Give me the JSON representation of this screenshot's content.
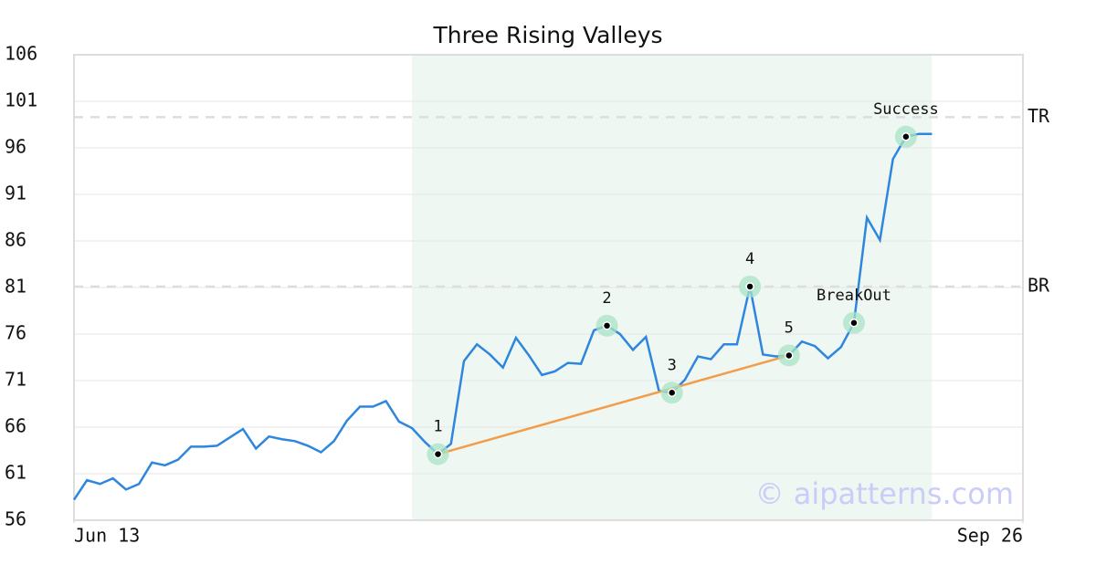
{
  "chart_data": {
    "type": "line",
    "title": "Three Rising Valleys",
    "x": [
      0,
      1,
      2,
      3,
      4,
      5,
      6,
      7,
      8,
      9,
      10,
      11,
      12,
      13,
      14,
      15,
      16,
      17,
      18,
      19,
      20,
      21,
      22,
      23,
      24,
      25,
      26,
      27,
      28,
      29,
      30,
      31,
      32,
      33,
      34,
      35,
      36,
      37,
      38,
      39,
      40,
      41,
      42,
      43,
      44,
      45,
      46,
      47,
      48,
      49,
      50,
      51,
      52,
      53,
      54,
      55,
      56,
      57,
      58,
      59,
      60,
      61,
      62,
      63,
      64,
      65,
      66
    ],
    "values": [
      58.2,
      60.3,
      59.9,
      60.5,
      59.3,
      59.9,
      62.2,
      61.9,
      62.5,
      63.9,
      63.9,
      64.0,
      64.9,
      65.8,
      63.7,
      65.0,
      64.7,
      64.5,
      64.0,
      63.3,
      64.5,
      66.7,
      68.2,
      68.2,
      68.8,
      66.6,
      65.9,
      64.4,
      63.1,
      64.2,
      73.1,
      74.9,
      73.8,
      72.4,
      75.6,
      73.7,
      71.6,
      72.0,
      72.9,
      72.8,
      76.4,
      76.9,
      76.0,
      74.3,
      75.7,
      69.9,
      69.7,
      71.1,
      73.6,
      73.3,
      74.9,
      74.9,
      81.1,
      73.8,
      73.6,
      73.7,
      75.2,
      74.7,
      73.4,
      74.6,
      77.2,
      88.5,
      86.1,
      94.8,
      97.2,
      97.5,
      97.5
    ],
    "color": "#2e86de",
    "xlim": [
      0,
      73
    ],
    "xticks": [
      {
        "value": 0,
        "label": "Jun 13"
      },
      {
        "value": 73,
        "label": "Sep 26"
      }
    ],
    "ylim": [
      56,
      106
    ],
    "yticks": [
      56,
      61,
      66,
      71,
      76,
      81,
      86,
      91,
      96,
      101,
      106
    ],
    "grid": true,
    "highlight": [
      26,
      66
    ],
    "points": [
      {
        "label": "1",
        "index": 28
      },
      {
        "label": "2",
        "index": 41
      },
      {
        "label": "3",
        "index": 46
      },
      {
        "label": "4",
        "index": 52
      },
      {
        "label": "5",
        "index": 55
      },
      {
        "label": "BreakOut",
        "index": 60
      },
      {
        "label": "Success",
        "index": 64
      }
    ],
    "trendline": {
      "from": 28,
      "to": 55,
      "color": "#f29d4b"
    },
    "levels": [
      {
        "label": "TR",
        "value": 99.3
      },
      {
        "label": "BR",
        "value": 81.1
      }
    ],
    "watermark": "© aipatterns.com"
  }
}
